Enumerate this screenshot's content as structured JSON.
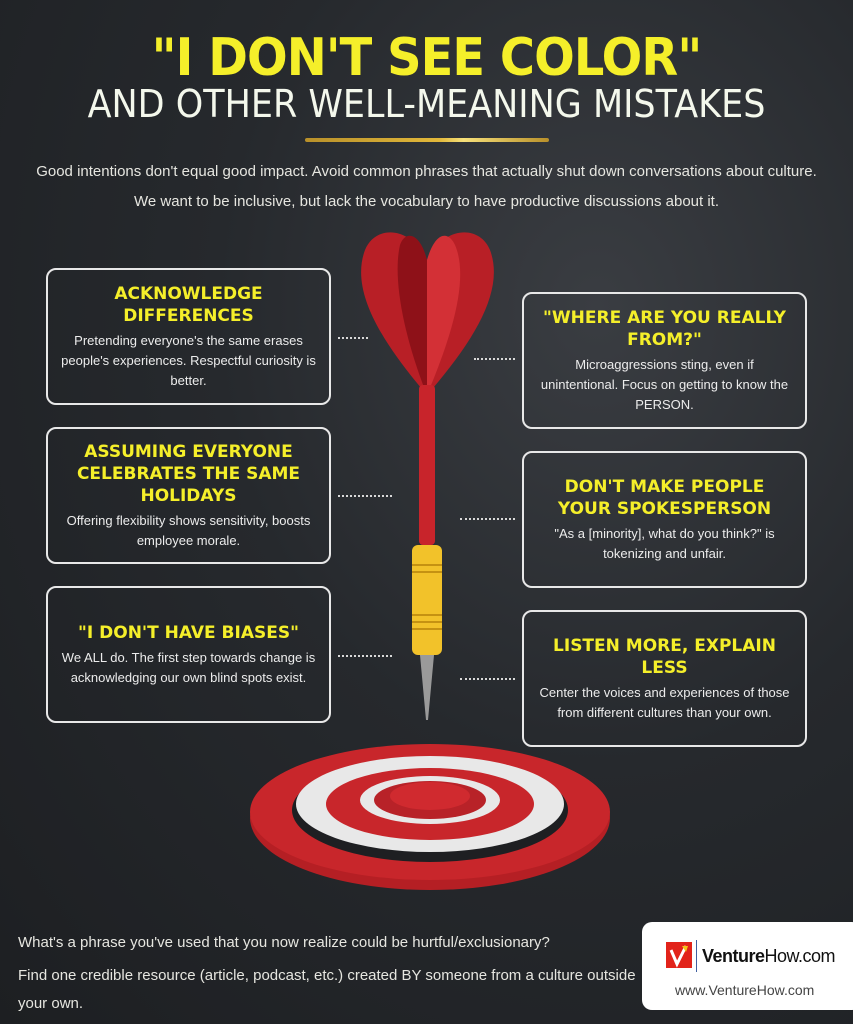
{
  "header": {
    "title": "\"I DON'T SEE COLOR\"",
    "subtitle": "AND OTHER WELL-MEANING MISTAKES",
    "intro": [
      "Good intentions don't equal good impact. Avoid common phrases that actually shut down conversations about culture.",
      "We want to be inclusive, but lack the vocabulary to have productive discussions about it."
    ]
  },
  "left_cards": [
    {
      "title": "ACKNOWLEDGE DIFFERENCES",
      "body": "Pretending everyone's the same erases people's experiences. Respectful curiosity is better."
    },
    {
      "title": "ASSUMING EVERYONE CELEBRATES THE SAME HOLIDAYS",
      "body": "Offering flexibility shows sensitivity, boosts employee morale."
    },
    {
      "title": "\"I DON'T HAVE BIASES\"",
      "body": "We ALL do. The first step towards change is acknowledging our own blind spots exist."
    }
  ],
  "right_cards": [
    {
      "title": "\"WHERE ARE YOU REALLY FROM?\"",
      "body": "Microaggressions sting, even if unintentional. Focus on getting to know the PERSON."
    },
    {
      "title": "DON'T MAKE PEOPLE YOUR SPOKESPERSON",
      "body": "\"As a [minority], what do you think?\" is tokenizing and unfair."
    },
    {
      "title": "LISTEN MORE, EXPLAIN LESS",
      "body": "Center the voices and experiences of those from different cultures than your own."
    }
  ],
  "footer": {
    "question": "What's a phrase you've used that you now realize could be hurtful/exclusionary?",
    "task": "Find one credible resource (article, podcast, etc.) created BY someone from a culture outside your own.",
    "logo": {
      "brand_bold": "Venture",
      "brand_rest": "How.com",
      "url": "www.VentureHow.com"
    }
  },
  "colors": {
    "accent": "#f5ef2a",
    "dart_red": "#c8242b",
    "grip": "#f2c22a",
    "background": "#25282c"
  }
}
